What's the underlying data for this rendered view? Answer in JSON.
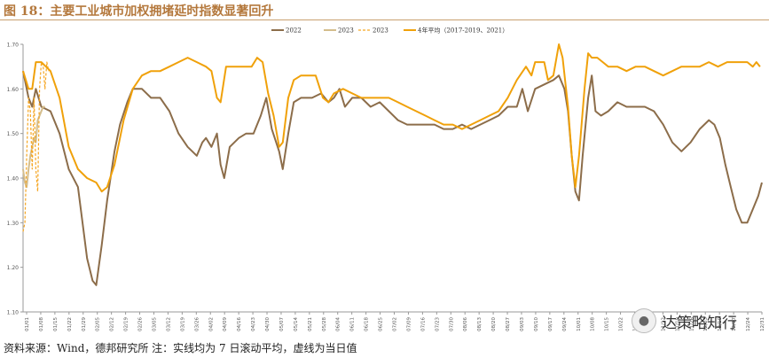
{
  "header": {
    "title": "图 18：主要工业城市加权拥堵延时指数显著回升"
  },
  "footer": {
    "source": "资料来源：Wind，德邦研究所 注：实线均为 7 日滚动平均，虚线为当日值"
  },
  "watermark": {
    "text": "达策略知行",
    "icon": "wechat-icon"
  },
  "chart_data": {
    "type": "line",
    "title": "",
    "xlabel": "",
    "ylabel": "",
    "ylim": [
      1.1,
      1.7
    ],
    "yticks": [
      "1.10",
      "1.20",
      "1.30",
      "1.40",
      "1.50",
      "1.60",
      "1.70"
    ],
    "xticks": [
      "01/01",
      "01/08",
      "01/15",
      "01/22",
      "01/29",
      "02/05",
      "02/12",
      "02/19",
      "02/26",
      "03/05",
      "03/12",
      "03/19",
      "03/26",
      "04/02",
      "04/09",
      "04/16",
      "04/23",
      "04/30",
      "05/07",
      "05/14",
      "05/21",
      "05/28",
      "06/04",
      "06/11",
      "06/18",
      "06/25",
      "07/02",
      "07/09",
      "07/16",
      "07/23",
      "07/30",
      "08/06",
      "08/13",
      "08/20",
      "08/27",
      "09/03",
      "09/10",
      "09/17",
      "09/24",
      "10/01",
      "10/08",
      "10/15",
      "10/22",
      "10/29",
      "11/05",
      "11/12",
      "11/19",
      "11/26",
      "12/03",
      "12/10",
      "12/17",
      "12/24",
      "12/31"
    ],
    "grid": false,
    "legend_position": "top",
    "series": [
      {
        "name": "2022",
        "color": "#8c6d4a",
        "style": "solid",
        "points": [
          [
            0,
            1.64
          ],
          [
            3,
            1.58
          ],
          [
            5,
            1.56
          ],
          [
            7,
            1.6
          ],
          [
            10,
            1.56
          ],
          [
            15,
            1.55
          ],
          [
            20,
            1.5
          ],
          [
            25,
            1.42
          ],
          [
            30,
            1.38
          ],
          [
            35,
            1.22
          ],
          [
            38,
            1.17
          ],
          [
            40,
            1.16
          ],
          [
            43,
            1.25
          ],
          [
            46,
            1.35
          ],
          [
            50,
            1.46
          ],
          [
            53,
            1.52
          ],
          [
            57,
            1.57
          ],
          [
            60,
            1.6
          ],
          [
            65,
            1.6
          ],
          [
            70,
            1.58
          ],
          [
            75,
            1.58
          ],
          [
            80,
            1.55
          ],
          [
            85,
            1.5
          ],
          [
            90,
            1.47
          ],
          [
            95,
            1.45
          ],
          [
            98,
            1.48
          ],
          [
            100,
            1.49
          ],
          [
            103,
            1.47
          ],
          [
            106,
            1.5
          ],
          [
            108,
            1.43
          ],
          [
            110,
            1.4
          ],
          [
            113,
            1.47
          ],
          [
            118,
            1.49
          ],
          [
            122,
            1.5
          ],
          [
            126,
            1.5
          ],
          [
            130,
            1.54
          ],
          [
            133,
            1.58
          ],
          [
            136,
            1.51
          ],
          [
            140,
            1.46
          ],
          [
            142,
            1.42
          ],
          [
            145,
            1.5
          ],
          [
            148,
            1.57
          ],
          [
            152,
            1.58
          ],
          [
            158,
            1.58
          ],
          [
            163,
            1.59
          ],
          [
            167,
            1.57
          ],
          [
            170,
            1.58
          ],
          [
            173,
            1.6
          ],
          [
            176,
            1.56
          ],
          [
            180,
            1.58
          ],
          [
            185,
            1.58
          ],
          [
            190,
            1.56
          ],
          [
            195,
            1.57
          ],
          [
            200,
            1.55
          ],
          [
            205,
            1.53
          ],
          [
            210,
            1.52
          ],
          [
            215,
            1.52
          ],
          [
            220,
            1.52
          ],
          [
            225,
            1.52
          ],
          [
            230,
            1.51
          ],
          [
            235,
            1.51
          ],
          [
            240,
            1.52
          ],
          [
            245,
            1.51
          ],
          [
            250,
            1.52
          ],
          [
            255,
            1.53
          ],
          [
            260,
            1.54
          ],
          [
            265,
            1.56
          ],
          [
            270,
            1.56
          ],
          [
            273,
            1.6
          ],
          [
            276,
            1.55
          ],
          [
            280,
            1.6
          ],
          [
            285,
            1.61
          ],
          [
            290,
            1.62
          ],
          [
            293,
            1.63
          ],
          [
            296,
            1.6
          ],
          [
            298,
            1.55
          ],
          [
            300,
            1.45
          ],
          [
            302,
            1.37
          ],
          [
            304,
            1.35
          ],
          [
            306,
            1.45
          ],
          [
            309,
            1.58
          ],
          [
            311,
            1.63
          ],
          [
            313,
            1.55
          ],
          [
            316,
            1.54
          ],
          [
            320,
            1.55
          ],
          [
            325,
            1.57
          ],
          [
            330,
            1.56
          ],
          [
            335,
            1.56
          ],
          [
            340,
            1.56
          ],
          [
            345,
            1.55
          ],
          [
            350,
            1.52
          ],
          [
            355,
            1.48
          ],
          [
            360,
            1.46
          ],
          [
            365,
            1.48
          ],
          [
            370,
            1.51
          ],
          [
            375,
            1.53
          ],
          [
            378,
            1.52
          ],
          [
            381,
            1.49
          ],
          [
            384,
            1.43
          ],
          [
            387,
            1.38
          ],
          [
            390,
            1.33
          ],
          [
            393,
            1.3
          ],
          [
            396,
            1.3
          ],
          [
            399,
            1.33
          ],
          [
            402,
            1.36
          ],
          [
            404,
            1.39
          ]
        ]
      },
      {
        "name": "2023",
        "color": "#d4bd8c",
        "style": "solid",
        "points": [
          [
            0,
            1.42
          ],
          [
            1,
            1.39
          ],
          [
            2,
            1.38
          ],
          [
            3,
            1.42
          ],
          [
            4,
            1.45
          ],
          [
            5,
            1.47
          ],
          [
            6,
            1.49
          ],
          [
            7,
            1.48
          ],
          [
            8,
            1.53
          ],
          [
            9,
            1.54
          ],
          [
            10,
            1.55
          ],
          [
            11,
            1.56
          ],
          [
            12,
            1.56
          ]
        ]
      },
      {
        "name": "2023",
        "color": "#f5a623",
        "style": "dashed",
        "points": [
          [
            0,
            1.28
          ],
          [
            1,
            1.3
          ],
          [
            2,
            1.45
          ],
          [
            3,
            1.58
          ],
          [
            4,
            1.55
          ],
          [
            5,
            1.42
          ],
          [
            6,
            1.58
          ],
          [
            7,
            1.42
          ],
          [
            8,
            1.37
          ],
          [
            9,
            1.6
          ],
          [
            10,
            1.66
          ],
          [
            11,
            1.65
          ],
          [
            12,
            1.6
          ],
          [
            13,
            1.66
          ],
          [
            14,
            1.64
          ]
        ]
      },
      {
        "name": "4年平均（2017-2019、2021）",
        "color": "#f0a10a",
        "style": "solid",
        "points": [
          [
            0,
            1.64
          ],
          [
            3,
            1.6
          ],
          [
            5,
            1.6
          ],
          [
            7,
            1.66
          ],
          [
            10,
            1.66
          ],
          [
            15,
            1.64
          ],
          [
            20,
            1.58
          ],
          [
            25,
            1.47
          ],
          [
            30,
            1.42
          ],
          [
            35,
            1.4
          ],
          [
            40,
            1.39
          ],
          [
            43,
            1.37
          ],
          [
            46,
            1.38
          ],
          [
            50,
            1.43
          ],
          [
            55,
            1.53
          ],
          [
            60,
            1.6
          ],
          [
            65,
            1.63
          ],
          [
            70,
            1.64
          ],
          [
            75,
            1.64
          ],
          [
            80,
            1.65
          ],
          [
            85,
            1.66
          ],
          [
            90,
            1.67
          ],
          [
            95,
            1.66
          ],
          [
            100,
            1.65
          ],
          [
            103,
            1.64
          ],
          [
            106,
            1.58
          ],
          [
            108,
            1.57
          ],
          [
            111,
            1.65
          ],
          [
            115,
            1.65
          ],
          [
            120,
            1.65
          ],
          [
            125,
            1.65
          ],
          [
            128,
            1.67
          ],
          [
            131,
            1.66
          ],
          [
            134,
            1.59
          ],
          [
            137,
            1.54
          ],
          [
            140,
            1.47
          ],
          [
            142,
            1.48
          ],
          [
            145,
            1.58
          ],
          [
            148,
            1.62
          ],
          [
            152,
            1.63
          ],
          [
            156,
            1.63
          ],
          [
            160,
            1.63
          ],
          [
            164,
            1.58
          ],
          [
            167,
            1.57
          ],
          [
            170,
            1.59
          ],
          [
            175,
            1.6
          ],
          [
            180,
            1.59
          ],
          [
            185,
            1.58
          ],
          [
            190,
            1.58
          ],
          [
            195,
            1.58
          ],
          [
            200,
            1.58
          ],
          [
            205,
            1.57
          ],
          [
            210,
            1.56
          ],
          [
            215,
            1.55
          ],
          [
            220,
            1.54
          ],
          [
            225,
            1.53
          ],
          [
            230,
            1.52
          ],
          [
            235,
            1.52
          ],
          [
            240,
            1.51
          ],
          [
            245,
            1.52
          ],
          [
            250,
            1.53
          ],
          [
            255,
            1.54
          ],
          [
            260,
            1.55
          ],
          [
            265,
            1.58
          ],
          [
            270,
            1.62
          ],
          [
            275,
            1.65
          ],
          [
            278,
            1.63
          ],
          [
            280,
            1.66
          ],
          [
            285,
            1.66
          ],
          [
            287,
            1.62
          ],
          [
            290,
            1.63
          ],
          [
            293,
            1.7
          ],
          [
            295,
            1.67
          ],
          [
            298,
            1.56
          ],
          [
            300,
            1.45
          ],
          [
            302,
            1.38
          ],
          [
            304,
            1.45
          ],
          [
            307,
            1.6
          ],
          [
            309,
            1.68
          ],
          [
            311,
            1.67
          ],
          [
            314,
            1.67
          ],
          [
            317,
            1.66
          ],
          [
            320,
            1.65
          ],
          [
            325,
            1.65
          ],
          [
            330,
            1.64
          ],
          [
            335,
            1.65
          ],
          [
            340,
            1.65
          ],
          [
            345,
            1.64
          ],
          [
            350,
            1.63
          ],
          [
            355,
            1.64
          ],
          [
            360,
            1.65
          ],
          [
            365,
            1.65
          ],
          [
            370,
            1.65
          ],
          [
            375,
            1.66
          ],
          [
            380,
            1.65
          ],
          [
            385,
            1.66
          ],
          [
            390,
            1.66
          ],
          [
            393,
            1.66
          ],
          [
            396,
            1.66
          ],
          [
            399,
            1.65
          ],
          [
            401,
            1.66
          ],
          [
            403,
            1.65
          ]
        ]
      }
    ]
  }
}
